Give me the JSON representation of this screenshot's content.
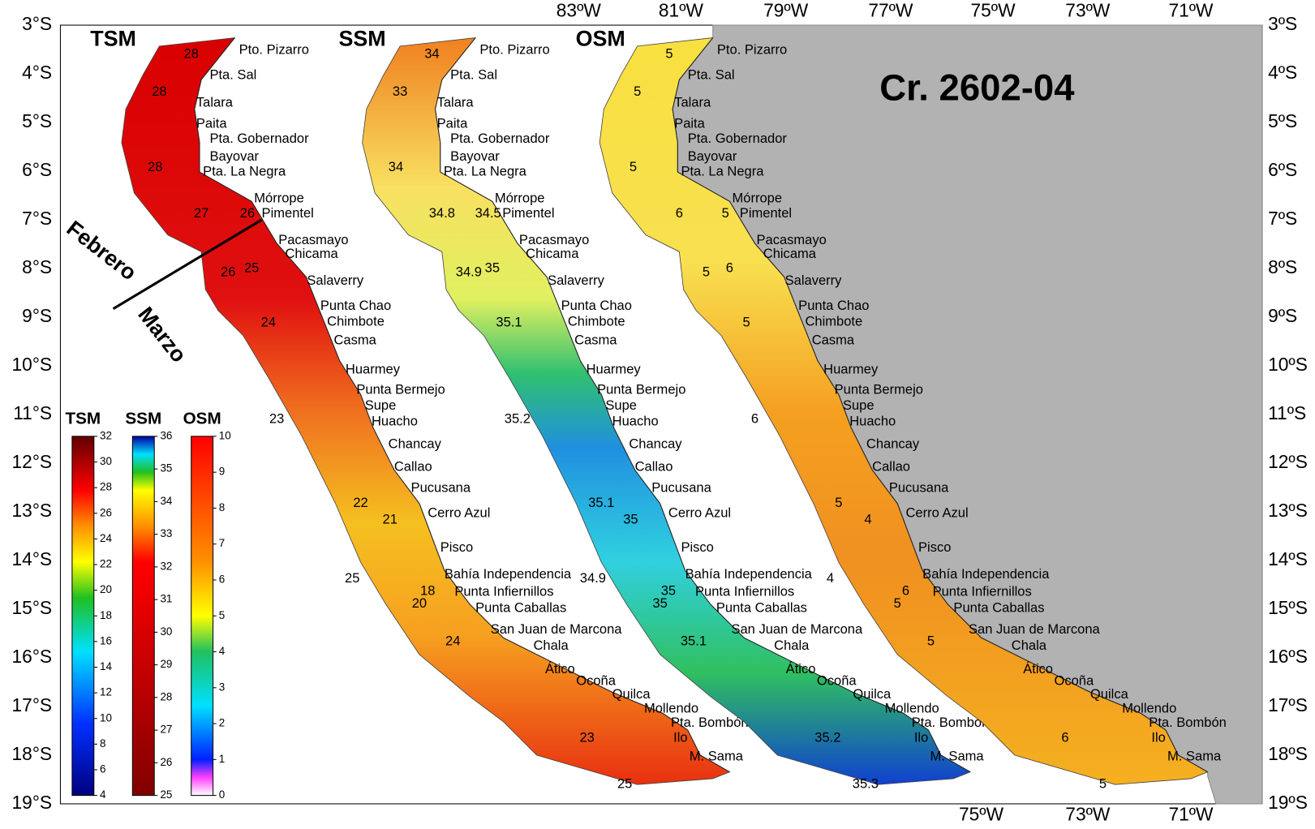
{
  "map": {
    "lat_labels_left": [
      "3°S",
      "4°S",
      "5°S",
      "6°S",
      "7°S",
      "8°S",
      "9°S",
      "10°S",
      "11°S",
      "12°S",
      "13°S",
      "14°S",
      "15°S",
      "16°S",
      "17°S",
      "18°S",
      "19°S"
    ],
    "lat_labels_right": [
      "3ºS",
      "4ºS",
      "5ºS",
      "6ºS",
      "7ºS",
      "8ºS",
      "9ºS",
      "10ºS",
      "11ºS",
      "12ºS",
      "13ºS",
      "14ºS",
      "15ºS",
      "16ºS",
      "17ºS",
      "18ºS",
      "19ºS"
    ],
    "lon_labels_top": [
      "83ºW",
      "81ºW",
      "79ºW",
      "77ºW",
      "75ºW",
      "73ºW",
      "71ºW"
    ],
    "lon_labels_bottom": [
      "75ºW",
      "73ºW",
      "71ºW"
    ],
    "cruise": "Cr. 2602-04",
    "period_labels": [
      "Febrero",
      "Marzo"
    ],
    "panels": [
      {
        "title": "TSM",
        "contour_labels": [
          28,
          28,
          28,
          26,
          27,
          26,
          25,
          24,
          23,
          22,
          21,
          20,
          18,
          24,
          25,
          23,
          25
        ]
      },
      {
        "title": "SSM",
        "contour_labels": [
          34,
          33,
          34,
          34.5,
          34.8,
          34.9,
          35,
          35.1,
          35.2,
          35.1,
          35,
          35,
          35,
          35.1,
          34.9,
          35.2,
          35.3
        ]
      },
      {
        "title": "OSM",
        "contour_labels": [
          5,
          5,
          5,
          5,
          6,
          5,
          6,
          5,
          6,
          5,
          4,
          5,
          6,
          5,
          4,
          6,
          5
        ]
      }
    ],
    "places": [
      "Pto. Pizarro",
      "Pta. Sal",
      "Talara",
      "Paita",
      "Pta. Gobernador",
      "Bayovar",
      "Pta. La Negra",
      "Mórrope",
      "Pimentel",
      "Pacasmayo",
      "Chicama",
      "Salaverry",
      "Punta Chao",
      "Chimbote",
      "Casma",
      "Huarmey",
      "Punta Bermejo",
      "Supe",
      "Huacho",
      "Chancay",
      "Callao",
      "Pucusana",
      "Cerro Azul",
      "Pisco",
      "Bahía Independencia",
      "Punta Infiernillos",
      "Punta Caballas",
      "San Juan de Marcona",
      "Chala",
      "Ático",
      "Ocoña",
      "Quilca",
      "Mollendo",
      "Pta. Bombón",
      "Ilo",
      "M. Sama"
    ],
    "colorbars": [
      {
        "title": "TSM",
        "ticks": [
          4,
          6,
          8,
          10,
          12,
          14,
          16,
          18,
          20,
          22,
          24,
          26,
          28,
          30,
          32
        ]
      },
      {
        "title": "SSM",
        "ticks": [
          25,
          26,
          27,
          28,
          29,
          30,
          31,
          32,
          33,
          34,
          35,
          36
        ]
      },
      {
        "title": "OSM",
        "ticks": [
          0,
          1,
          2,
          3,
          4,
          5,
          6,
          7,
          8,
          9,
          10
        ]
      }
    ]
  }
}
